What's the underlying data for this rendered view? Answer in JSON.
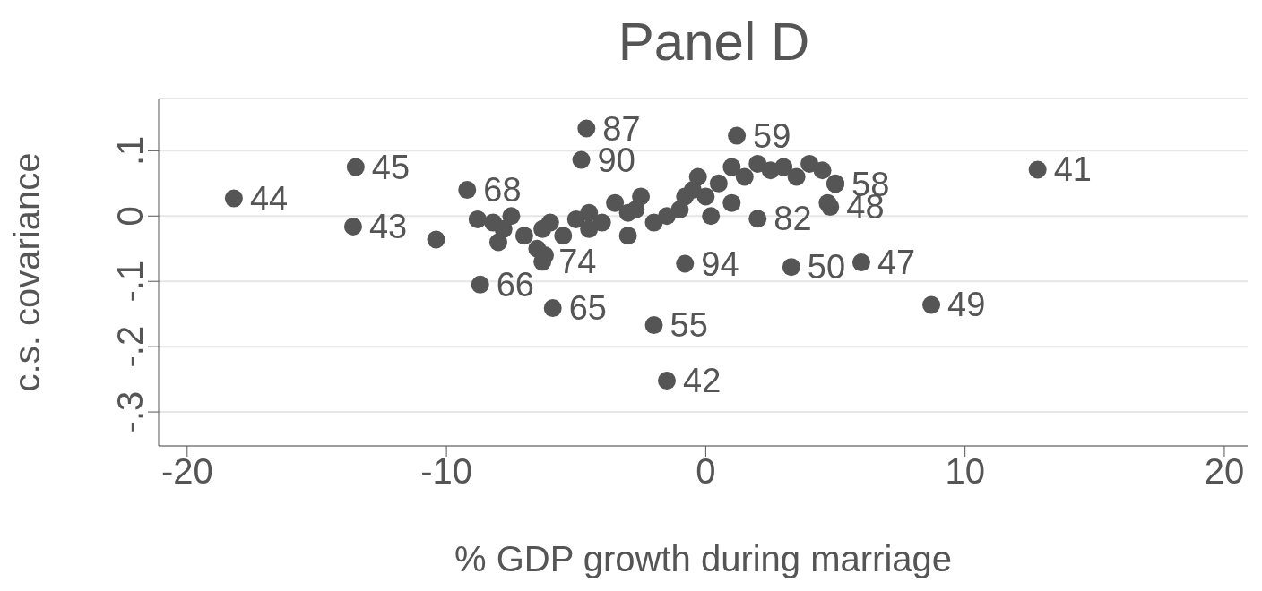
{
  "chart_data": {
    "type": "scatter",
    "title": "Panel D",
    "xlabel": "% GDP growth during marriage",
    "ylabel": "c.s. covariance",
    "xlim": [
      -21.1,
      20.9
    ],
    "xticks": [
      -20,
      -10,
      0,
      10,
      20
    ],
    "ylim": [
      -0.352,
      0.18
    ],
    "yticks": [
      {
        "value": -0.3,
        "label": "-.3"
      },
      {
        "value": -0.2,
        "label": "-.2"
      },
      {
        "value": -0.1,
        "label": "-.1"
      },
      {
        "value": 0,
        "label": "0"
      },
      {
        "value": 0.1,
        "label": ".1"
      }
    ],
    "grid": "y",
    "marker": "circle",
    "legend": false,
    "annotations": [
      {
        "text": "44",
        "x": -18.2,
        "y": 0.027
      },
      {
        "text": "45",
        "x": -13.5,
        "y": 0.075
      },
      {
        "text": "43",
        "x": -13.6,
        "y": -0.016
      },
      {
        "text": "87",
        "x": -4.6,
        "y": 0.134
      },
      {
        "text": "90",
        "x": -4.8,
        "y": 0.086
      },
      {
        "text": "68",
        "x": -9.2,
        "y": 0.04
      },
      {
        "text": "59",
        "x": 1.2,
        "y": 0.123
      },
      {
        "text": "41",
        "x": 12.8,
        "y": 0.071
      },
      {
        "text": "58",
        "x": 5.0,
        "y": 0.049
      },
      {
        "text": "48",
        "x": 4.8,
        "y": 0.014
      },
      {
        "text": "82",
        "x": 2.0,
        "y": -0.004
      },
      {
        "text": "94",
        "x": -0.8,
        "y": -0.073
      },
      {
        "text": "50",
        "x": 3.3,
        "y": -0.078
      },
      {
        "text": "47",
        "x": 6.0,
        "y": -0.071
      },
      {
        "text": "49",
        "x": 8.7,
        "y": -0.136
      },
      {
        "text": "66",
        "x": -8.7,
        "y": -0.105
      },
      {
        "text": "65",
        "x": -5.9,
        "y": -0.141
      },
      {
        "text": "55",
        "x": -2.0,
        "y": -0.167
      },
      {
        "text": "42",
        "x": -1.5,
        "y": -0.252
      },
      {
        "text": "74",
        "x": -6.3,
        "y": -0.07
      }
    ],
    "series": [
      {
        "color": "#555555",
        "x": [
          -18.2,
          -13.5,
          -13.6,
          -10.4,
          -4.6,
          -4.8,
          -9.2,
          1.2,
          12.8,
          5.0,
          4.8,
          2.0,
          -0.8,
          3.3,
          6.0,
          8.7,
          -8.7,
          -5.9,
          -2.0,
          -1.5,
          -6.3,
          -8.8,
          -8.2,
          -7.8,
          -7.5,
          -7.0,
          -6.5,
          -6.3,
          -6.0,
          -5.5,
          -5.0,
          -4.5,
          -4.0,
          -3.5,
          -3.0,
          -2.7,
          -2.5,
          -2.0,
          -1.5,
          -1.0,
          -0.5,
          -0.3,
          0.0,
          0.5,
          1.0,
          1.5,
          2.0,
          2.5,
          3.0,
          3.5,
          4.0,
          4.5,
          5.0,
          4.7,
          1.0,
          0.2,
          -0.8,
          -3.0,
          -4.5,
          -6.2,
          -8.0
        ],
        "values": [
          0.027,
          0.075,
          -0.016,
          -0.036,
          0.134,
          0.086,
          0.04,
          0.123,
          0.071,
          0.049,
          0.014,
          -0.004,
          -0.073,
          -0.078,
          -0.071,
          -0.136,
          -0.105,
          -0.141,
          -0.167,
          -0.252,
          -0.07,
          -0.005,
          -0.01,
          -0.02,
          0.0,
          -0.03,
          -0.05,
          -0.02,
          -0.01,
          -0.03,
          -0.005,
          0.005,
          -0.01,
          0.02,
          0.005,
          0.01,
          0.03,
          -0.01,
          0.0,
          0.01,
          0.04,
          0.06,
          0.03,
          0.05,
          0.075,
          0.06,
          0.08,
          0.07,
          0.075,
          0.06,
          0.08,
          0.07,
          0.05,
          0.02,
          0.02,
          0.0,
          0.03,
          -0.03,
          -0.02,
          -0.06,
          -0.04
        ]
      }
    ]
  }
}
